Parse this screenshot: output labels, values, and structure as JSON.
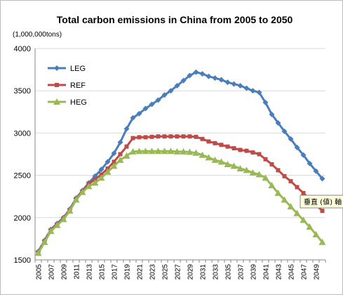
{
  "chart_data": {
    "type": "line",
    "title": "Total carbon emissions in China from 2005 to 2050",
    "unit_label": "(1,000,000tons)",
    "xlabel": "",
    "ylabel": "",
    "ylim": [
      1500,
      4000
    ],
    "yticks": [
      1500,
      2000,
      2500,
      3000,
      3500,
      4000
    ],
    "x": [
      2005,
      2006,
      2007,
      2008,
      2009,
      2010,
      2011,
      2012,
      2013,
      2014,
      2015,
      2016,
      2017,
      2018,
      2019,
      2020,
      2021,
      2022,
      2023,
      2024,
      2025,
      2026,
      2027,
      2028,
      2029,
      2030,
      2031,
      2032,
      2033,
      2034,
      2035,
      2036,
      2037,
      2038,
      2039,
      2040,
      2041,
      2042,
      2043,
      2044,
      2045,
      2046,
      2047,
      2048,
      2049,
      2050
    ],
    "xtick_labels": [
      "2005",
      "2007",
      "2009",
      "2011",
      "2013",
      "2015",
      "2017",
      "2019",
      "2021",
      "2023",
      "2025",
      "2027",
      "2029",
      "2031",
      "2033",
      "2035",
      "2037",
      "2039",
      "2041",
      "2043",
      "2045",
      "2047",
      "2049"
    ],
    "grid": true,
    "legend_position": "top-left",
    "series": [
      {
        "name": "LEG",
        "color": "#4a7ebb",
        "marker": "diamond",
        "values": [
          1600,
          1730,
          1860,
          1930,
          2000,
          2100,
          2230,
          2320,
          2410,
          2490,
          2570,
          2660,
          2760,
          2890,
          3050,
          3180,
          3230,
          3290,
          3340,
          3390,
          3450,
          3500,
          3560,
          3620,
          3680,
          3720,
          3700,
          3670,
          3650,
          3630,
          3600,
          3580,
          3560,
          3530,
          3500,
          3480,
          3360,
          3220,
          3120,
          3020,
          2930,
          2830,
          2740,
          2640,
          2550,
          2460
        ]
      },
      {
        "name": "REF",
        "color": "#be4b48",
        "marker": "square",
        "values": [
          1590,
          1720,
          1850,
          1920,
          1990,
          2090,
          2220,
          2310,
          2400,
          2450,
          2510,
          2580,
          2660,
          2750,
          2840,
          2940,
          2950,
          2950,
          2955,
          2960,
          2960,
          2960,
          2960,
          2960,
          2960,
          2955,
          2930,
          2900,
          2880,
          2860,
          2840,
          2820,
          2800,
          2790,
          2770,
          2750,
          2690,
          2630,
          2560,
          2490,
          2430,
          2360,
          2290,
          2220,
          2150,
          2080
        ]
      },
      {
        "name": "HEG",
        "color": "#98b954",
        "marker": "triangle",
        "values": [
          1580,
          1710,
          1840,
          1910,
          1980,
          2080,
          2210,
          2300,
          2370,
          2410,
          2470,
          2540,
          2610,
          2680,
          2730,
          2780,
          2785,
          2785,
          2785,
          2785,
          2785,
          2785,
          2780,
          2780,
          2775,
          2765,
          2740,
          2710,
          2680,
          2660,
          2630,
          2610,
          2580,
          2560,
          2530,
          2510,
          2470,
          2380,
          2290,
          2210,
          2130,
          2050,
          1970,
          1890,
          1800,
          1710
        ]
      }
    ]
  },
  "tooltip": {
    "text": "垂直 (値) 軸"
  }
}
